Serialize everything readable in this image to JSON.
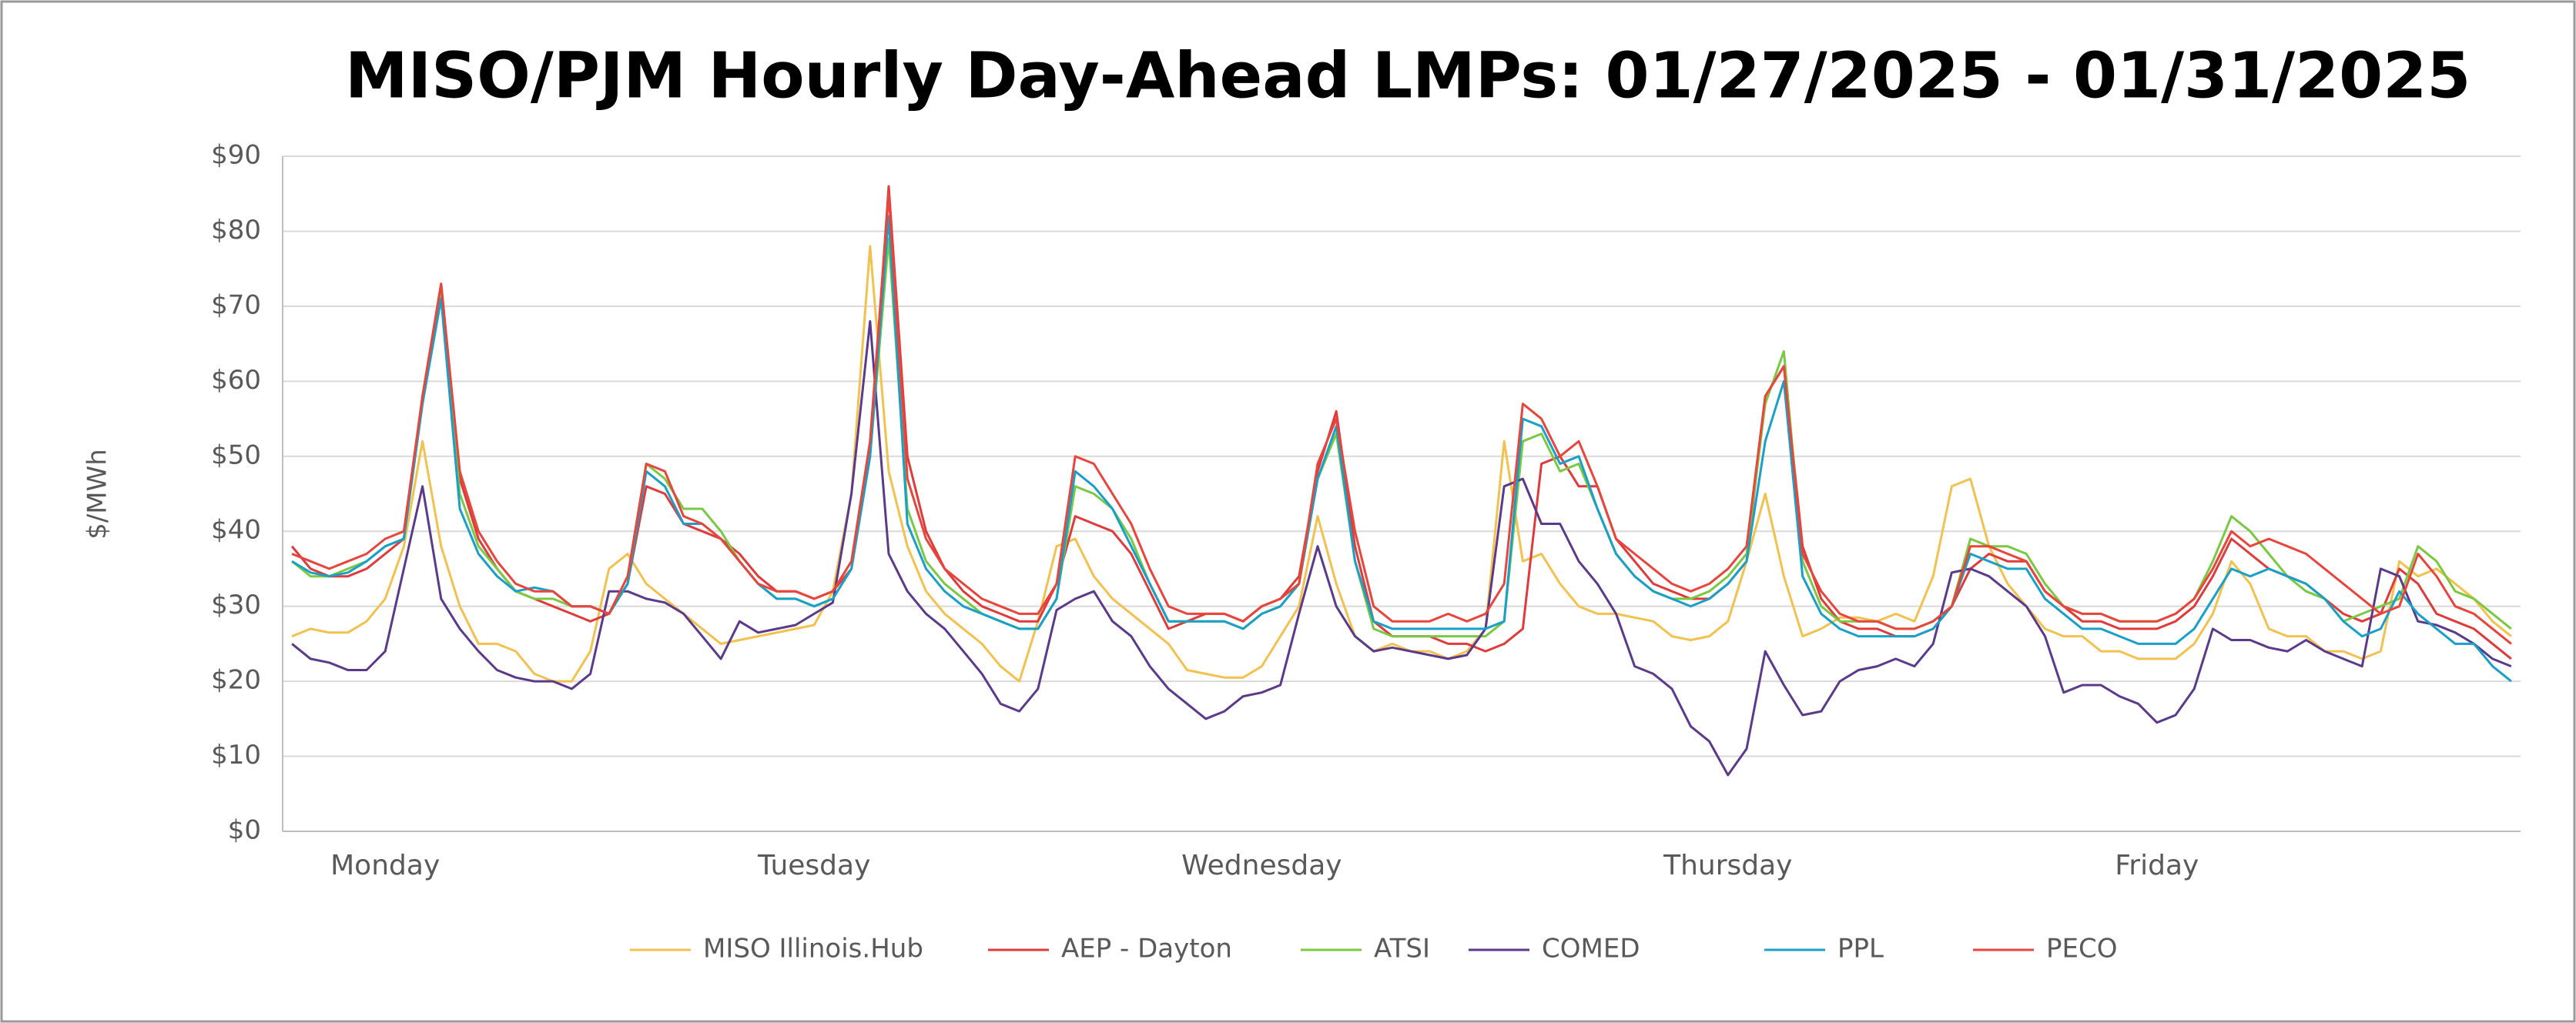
{
  "chart_data": {
    "type": "line",
    "title": "MISO/PJM Hourly Day-Ahead LMPs: 01/27/2025 - 01/31/2025",
    "ylabel": "$/MWh",
    "categories": [
      null,
      null,
      null,
      null,
      null,
      "Monday",
      null,
      null,
      null,
      null,
      null,
      null,
      null,
      null,
      null,
      null,
      null,
      null,
      null,
      null,
      null,
      null,
      null,
      null,
      null,
      null,
      null,
      null,
      "Tuesday",
      null,
      null,
      null,
      null,
      null,
      null,
      null,
      null,
      null,
      null,
      null,
      null,
      null,
      null,
      null,
      null,
      null,
      null,
      null,
      null,
      null,
      null,
      null,
      "Wednesday",
      null,
      null,
      null,
      null,
      null,
      null,
      null,
      null,
      null,
      null,
      null,
      null,
      null,
      null,
      null,
      null,
      null,
      null,
      null,
      null,
      null,
      null,
      null,
      null,
      "Thursday",
      null,
      null,
      null,
      null,
      null,
      null,
      null,
      null,
      null,
      null,
      null,
      null,
      null,
      null,
      null,
      null,
      null,
      null,
      null,
      null,
      null,
      null,
      "Friday",
      null,
      null,
      null,
      null,
      null,
      null,
      null,
      null,
      null,
      null,
      null,
      null,
      null,
      null,
      null,
      null,
      null,
      null,
      null
    ],
    "ylim": [
      0,
      90
    ],
    "yticks": [
      {
        "value": 0,
        "label": "$0"
      },
      {
        "value": 10,
        "label": "$10"
      },
      {
        "value": 20,
        "label": "$20"
      },
      {
        "value": 30,
        "label": "$30"
      },
      {
        "value": 40,
        "label": "$40"
      },
      {
        "value": 50,
        "label": "$50"
      },
      {
        "value": 60,
        "label": "$60"
      },
      {
        "value": 70,
        "label": "$70"
      },
      {
        "value": 80,
        "label": "$80"
      },
      {
        "value": 90,
        "label": "$90"
      }
    ],
    "grid": true,
    "legend": "bottom",
    "series": [
      {
        "name": "MISO Illinois.Hub",
        "color": "#f2c14e",
        "values": [
          26,
          27,
          26.5,
          26.5,
          28,
          31,
          38,
          52,
          38,
          30,
          25,
          25,
          24,
          21,
          20,
          20,
          24,
          35,
          37,
          33,
          31,
          29,
          27,
          25,
          25.5,
          26,
          26.5,
          27,
          27.5,
          32,
          45,
          78,
          48,
          38,
          32,
          29,
          27,
          25,
          22,
          20,
          28,
          38,
          39,
          34,
          31,
          29,
          27,
          25,
          21.5,
          21,
          20.5,
          20.5,
          22,
          26,
          30,
          42,
          33,
          26,
          24,
          25,
          24,
          24,
          23,
          24,
          27,
          52,
          36,
          37,
          33,
          30,
          29,
          29,
          28.5,
          28,
          26,
          25.5,
          26,
          28,
          36,
          45,
          34,
          26,
          27,
          28.5,
          28.5,
          28,
          29,
          28,
          34,
          46,
          47,
          38,
          33,
          30,
          27,
          26,
          26,
          24,
          24,
          23,
          23,
          23,
          25,
          29,
          36,
          33,
          27,
          26,
          26,
          24,
          24,
          23,
          24,
          36,
          34,
          35,
          33,
          31,
          28,
          26
        ]
      },
      {
        "name": "AEP - Dayton",
        "color": "#e03b3b",
        "values": [
          38,
          35,
          34,
          34,
          35,
          37,
          39,
          58,
          73,
          47,
          39,
          35,
          32,
          31,
          30,
          29,
          28,
          29,
          33,
          46,
          45,
          41,
          40,
          39,
          37,
          34,
          32,
          32,
          31,
          32,
          35,
          50,
          86,
          50,
          40,
          35,
          32,
          30,
          29,
          28,
          28,
          33,
          42,
          41,
          40,
          37,
          32,
          27,
          28,
          29,
          29,
          28,
          30,
          31,
          34,
          48,
          56,
          38,
          28,
          26,
          26,
          26,
          25,
          25,
          24,
          25,
          27,
          49,
          50,
          46,
          46,
          39,
          36,
          33,
          32,
          31,
          31,
          33,
          36,
          58,
          62,
          38,
          31,
          28,
          27,
          27,
          26,
          26,
          27,
          30,
          35,
          37,
          36,
          36,
          32,
          30,
          28,
          28,
          27,
          27,
          27,
          28,
          30,
          34,
          39,
          37,
          35,
          34,
          33,
          31,
          29,
          28,
          29,
          35,
          33,
          29,
          28,
          27,
          25,
          23
        ]
      },
      {
        "name": "ATSI",
        "color": "#7ac943",
        "values": [
          36,
          34,
          34,
          35,
          36,
          38,
          39,
          57,
          72,
          45,
          38,
          35,
          32,
          31,
          31,
          30,
          30,
          29,
          33,
          49,
          47,
          43,
          43,
          40,
          36,
          33,
          31,
          31,
          30,
          31,
          35,
          50,
          79,
          43,
          36,
          33,
          31,
          29,
          28,
          27,
          27,
          31,
          46,
          45,
          43,
          39,
          33,
          28,
          28,
          28,
          28,
          27,
          29,
          30,
          33,
          47,
          53,
          36,
          27,
          26,
          26,
          26,
          26,
          26,
          26,
          28,
          52,
          53,
          48,
          49,
          43,
          37,
          34,
          32,
          31,
          31,
          32,
          34,
          37,
          57,
          64,
          36,
          30,
          28,
          28,
          28,
          27,
          27,
          28,
          30,
          39,
          38,
          38,
          37,
          33,
          30,
          29,
          29,
          28,
          28,
          28,
          29,
          31,
          36,
          42,
          40,
          37,
          34,
          32,
          31,
          28,
          29,
          30,
          31,
          38,
          36,
          32,
          31,
          29,
          27
        ]
      },
      {
        "name": "COMED",
        "color": "#5b3a8c",
        "values": [
          25,
          23,
          22.5,
          21.5,
          21.5,
          24,
          35,
          46,
          31,
          27,
          24,
          21.5,
          20.5,
          20,
          20,
          19,
          21,
          32,
          32,
          31,
          30.5,
          29,
          26,
          23,
          28,
          26.5,
          27,
          27.5,
          29,
          30.5,
          45,
          68,
          37,
          32,
          29,
          27,
          24,
          21,
          17,
          16,
          19,
          29.5,
          31,
          32,
          28,
          26,
          22,
          19,
          17,
          15,
          16,
          18,
          18.5,
          19.5,
          29,
          38,
          30,
          26,
          24,
          24.5,
          24,
          23.5,
          23,
          23.5,
          27,
          46,
          47,
          41,
          41,
          36,
          33,
          29,
          22,
          21,
          19,
          14,
          12,
          7.5,
          11,
          24,
          19.5,
          15.5,
          16,
          20,
          21.5,
          22,
          23,
          22,
          25,
          34.5,
          35,
          34,
          32,
          30,
          26,
          18.5,
          19.5,
          19.5,
          18,
          17,
          14.5,
          15.5,
          19,
          27,
          25.5,
          25.5,
          24.5,
          24,
          25.5,
          24,
          23,
          22,
          35,
          34,
          28,
          27.5,
          26.5,
          25,
          23,
          22
        ]
      },
      {
        "name": "PPL",
        "color": "#1aa0c8",
        "values": [
          36,
          34.5,
          34,
          34.5,
          36,
          38,
          39,
          57,
          71,
          43,
          37,
          34,
          32,
          32.5,
          32,
          30,
          30,
          29,
          33,
          48,
          46,
          41,
          41,
          39,
          36,
          33,
          31,
          31,
          30,
          31,
          35,
          50,
          82,
          41,
          35,
          32,
          30,
          29,
          28,
          27,
          27,
          31,
          48,
          46,
          43,
          38,
          33,
          28,
          28,
          28,
          28,
          27,
          29,
          30,
          33,
          47,
          54,
          36,
          28,
          27,
          27,
          27,
          27,
          27,
          27,
          28,
          55,
          54,
          49,
          50,
          43,
          37,
          34,
          32,
          31,
          30,
          31,
          33,
          36,
          52,
          60,
          34,
          29,
          27,
          26,
          26,
          26,
          26,
          27,
          30,
          37,
          36,
          35,
          35,
          31,
          29,
          27,
          27,
          26,
          25,
          25,
          25,
          27,
          31,
          35,
          34,
          35,
          34,
          33,
          31,
          28,
          26,
          27,
          32,
          29,
          27,
          25,
          25,
          22,
          20
        ]
      },
      {
        "name": "PECO",
        "color": "#e8453c",
        "values": [
          37,
          36,
          35,
          36,
          37,
          39,
          40,
          58,
          73,
          48,
          40,
          36,
          33,
          32,
          32,
          30,
          30,
          29,
          34,
          49,
          48,
          42,
          41,
          39,
          36,
          33,
          32,
          32,
          31,
          32,
          36,
          52,
          85,
          47,
          39,
          35,
          33,
          31,
          30,
          29,
          29,
          33,
          50,
          49,
          45,
          41,
          35,
          30,
          29,
          29,
          29,
          28,
          30,
          31,
          33,
          49,
          55,
          40,
          30,
          28,
          28,
          28,
          29,
          28,
          29,
          33,
          57,
          55,
          50,
          52,
          46,
          39,
          37,
          35,
          33,
          32,
          33,
          35,
          38,
          58,
          62,
          37,
          32,
          29,
          28,
          28,
          27,
          27,
          28,
          30,
          38,
          38,
          37,
          36,
          32,
          30,
          29,
          29,
          28,
          28,
          28,
          29,
          31,
          35,
          40,
          38,
          39,
          38,
          37,
          35,
          33,
          31,
          29,
          30,
          37,
          34,
          30,
          29,
          27,
          25
        ]
      }
    ]
  }
}
